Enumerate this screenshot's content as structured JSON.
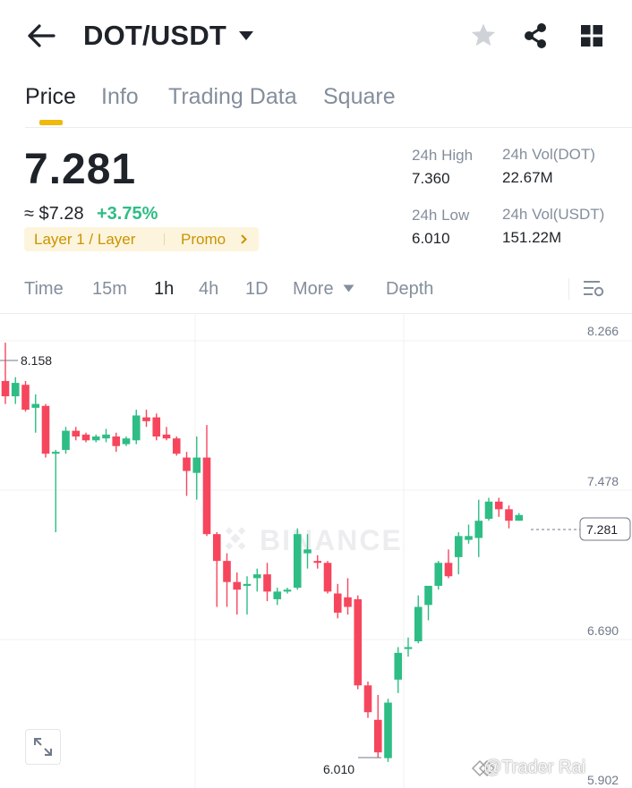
{
  "header": {
    "title": "DOT/USDT"
  },
  "tabs": [
    "Price",
    "Info",
    "Trading Data",
    "Square"
  ],
  "price": {
    "last": "7.281",
    "approx_usd": "≈ $7.28",
    "change": "+3.75%",
    "tags": [
      "Layer 1 / Layer",
      "Promo"
    ]
  },
  "stats": {
    "high_label": "24h High",
    "high_value": "7.360",
    "low_label": "24h Low",
    "low_value": "6.010",
    "vol_base_label": "24h Vol(DOT)",
    "vol_base_value": "22.67M",
    "vol_quote_label": "24h Vol(USDT)",
    "vol_quote_value": "151.22M"
  },
  "timeframes": [
    "Time",
    "15m",
    "1h",
    "4h",
    "1D",
    "More",
    "Depth"
  ],
  "chart": {
    "y_labels": [
      "8.266",
      "7.478",
      "6.690",
      "5.902"
    ],
    "max_label": "8.158",
    "min_label": "6.010",
    "current_price": "7.281",
    "watermark": "BINANCE"
  },
  "footer": {
    "handle": "@Trader Rai"
  },
  "colors": {
    "up": "#2ebd85",
    "down": "#f6465d",
    "accent": "#f0b90b",
    "text": "#1e2329",
    "muted": "#848e9c"
  },
  "icons": [
    "back-arrow-icon",
    "dropdown-caret-icon",
    "star-icon",
    "share-icon",
    "grid-icon",
    "chart-settings-icon",
    "expand-icon"
  ],
  "chart_data": {
    "type": "candlestick",
    "ylim": [
      5.902,
      8.266
    ],
    "candles": [
      [
        8.0,
        8.2,
        7.88,
        7.92
      ],
      [
        7.92,
        8.02,
        7.88,
        7.99
      ],
      [
        7.98,
        8.0,
        7.84,
        7.85
      ],
      [
        7.86,
        7.93,
        7.73,
        7.88
      ],
      [
        7.87,
        7.88,
        7.6,
        7.62
      ],
      [
        7.62,
        7.64,
        7.21,
        7.63
      ],
      [
        7.64,
        7.76,
        7.62,
        7.74
      ],
      [
        7.74,
        7.76,
        7.69,
        7.71
      ],
      [
        7.72,
        7.73,
        7.68,
        7.69
      ],
      [
        7.69,
        7.72,
        7.68,
        7.71
      ],
      [
        7.7,
        7.75,
        7.68,
        7.72
      ],
      [
        7.71,
        7.73,
        7.63,
        7.66
      ],
      [
        7.67,
        7.71,
        7.66,
        7.7
      ],
      [
        7.69,
        7.85,
        7.67,
        7.82
      ],
      [
        7.81,
        7.85,
        7.76,
        7.79
      ],
      [
        7.81,
        7.83,
        7.69,
        7.71
      ],
      [
        7.72,
        7.76,
        7.69,
        7.7
      ],
      [
        7.7,
        7.71,
        7.61,
        7.62
      ],
      [
        7.6,
        7.63,
        7.4,
        7.53
      ],
      [
        7.52,
        7.71,
        7.38,
        7.6
      ],
      [
        7.6,
        7.77,
        7.19,
        7.2
      ],
      [
        7.2,
        7.21,
        6.82,
        7.06
      ],
      [
        7.06,
        7.1,
        6.82,
        6.95
      ],
      [
        6.95,
        7.0,
        6.78,
        6.91
      ],
      [
        6.93,
        6.98,
        6.78,
        6.94
      ],
      [
        6.97,
        7.02,
        6.9,
        6.99
      ],
      [
        6.99,
        7.05,
        6.85,
        6.9
      ],
      [
        6.86,
        6.92,
        6.83,
        6.9
      ],
      [
        6.9,
        6.92,
        6.89,
        6.91
      ],
      [
        6.92,
        7.23,
        6.91,
        7.2
      ],
      [
        7.1,
        7.2,
        7.02,
        7.12
      ],
      [
        7.06,
        7.09,
        7.02,
        7.05
      ],
      [
        7.05,
        7.06,
        6.89,
        6.9
      ],
      [
        6.89,
        6.94,
        6.76,
        6.79
      ],
      [
        6.87,
        6.97,
        6.78,
        6.82
      ],
      [
        6.86,
        6.88,
        6.39,
        6.41
      ],
      [
        6.41,
        6.43,
        6.24,
        6.27
      ],
      [
        6.23,
        6.36,
        6.03,
        6.06
      ],
      [
        6.03,
        6.34,
        6.01,
        6.32
      ],
      [
        6.44,
        6.61,
        6.37,
        6.58
      ],
      [
        6.6,
        6.66,
        6.56,
        6.61
      ],
      [
        6.64,
        6.88,
        6.63,
        6.82
      ],
      [
        6.83,
        6.92,
        6.75,
        6.93
      ],
      [
        6.93,
        7.06,
        6.91,
        7.05
      ],
      [
        7.05,
        7.12,
        6.97,
        6.98
      ],
      [
        7.08,
        7.21,
        6.99,
        7.19
      ],
      [
        7.17,
        7.25,
        7.15,
        7.19
      ],
      [
        7.18,
        7.38,
        7.08,
        7.27
      ],
      [
        7.28,
        7.39,
        7.27,
        7.37
      ],
      [
        7.37,
        7.39,
        7.29,
        7.33
      ],
      [
        7.33,
        7.35,
        7.23,
        7.27
      ],
      [
        7.27,
        7.31,
        7.27,
        7.3
      ]
    ]
  }
}
